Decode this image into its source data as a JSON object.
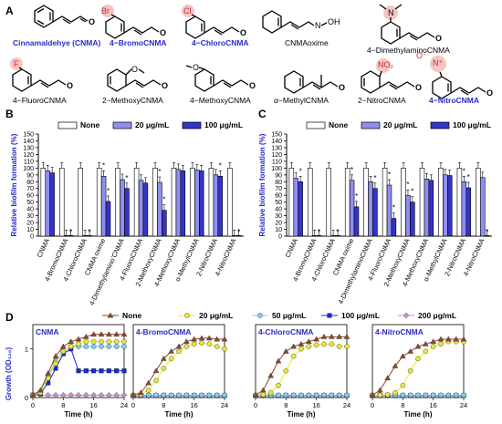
{
  "panel_labels": {
    "A": "A",
    "B": "B",
    "C": "C",
    "D": "D"
  },
  "compounds_row1": [
    "Cinnamaldehye (CNMA)",
    "4−BromoCNMA",
    "4−ChloroCNMA",
    "CNMAoxime",
    "4−DimethylaminoCNMA"
  ],
  "compounds_row2": [
    "4−FluoroCNMA",
    "2−MethoxyCNMA",
    "4−MethoxyCNMA",
    "α−MethylCNMA",
    "2−NitroCNMA",
    "4−NitroCNMA"
  ],
  "atoms": {
    "Br": "Br",
    "Cl": "Cl",
    "F": "F",
    "O": "O",
    "N": "N",
    "OH": "OH",
    "NO2": "NO₂",
    "N_plus": "N⁺",
    "O_minus": "O⁻"
  },
  "highlight_colors": {
    "blue": "#2b2bc8",
    "red_halo": "#f6c4c4",
    "black": "#000000"
  },
  "chart_data": [
    {
      "type": "bar",
      "panel": "B",
      "ylabel": "Relative biofilm formation (%)",
      "ylim": [
        0,
        150
      ],
      "yticks": [
        0,
        10,
        20,
        30,
        40,
        50,
        60,
        70,
        80,
        90,
        100,
        110,
        120,
        130,
        140,
        150
      ],
      "categories": [
        "CNMA",
        "4-BromoCNMA",
        "4-ChloroCNMA",
        "CNMA oxime",
        "4-Dimethylamino’CNMA",
        "4-FluoroCNMA",
        "2-MethoxyCNMA",
        "4-MethoxyCNMA",
        "α-MethylCNMA",
        "2-NitroCNMA",
        "4-NitroCNMA"
      ],
      "legend": [
        "None",
        "20 μg/mL",
        "100 μg/mL"
      ],
      "legend_placement": "top",
      "series": [
        {
          "name": "None",
          "color": "#ffffff",
          "values": [
            100,
            100,
            100,
            100,
            100,
            100,
            100,
            100,
            100,
            100,
            100
          ]
        },
        {
          "name": "20 μg/mL",
          "color": "#8f8ff0",
          "values": [
            96,
            1,
            1,
            88,
            83,
            82,
            79,
            98,
            97,
            90,
            1
          ]
        },
        {
          "name": "100 μg/mL",
          "color": "#3434c8",
          "values": [
            93,
            1,
            1,
            51,
            70,
            78,
            38,
            96,
            96,
            88,
            1
          ]
        }
      ],
      "asterisks": [
        [
          1,
          1
        ],
        [
          2,
          1
        ],
        [
          3,
          0
        ],
        [
          3,
          1
        ],
        [
          4,
          1
        ],
        [
          6,
          0
        ],
        [
          6,
          1
        ],
        [
          9,
          1
        ],
        [
          10,
          1
        ]
      ]
    },
    {
      "type": "bar",
      "panel": "C",
      "ylabel": "Relative biofilm formation (%)",
      "ylim": [
        0,
        150
      ],
      "yticks": [
        0,
        10,
        20,
        30,
        40,
        50,
        60,
        70,
        80,
        90,
        100,
        110,
        120,
        130,
        140,
        150
      ],
      "categories": [
        "CNMA",
        "4-BromoCNMA",
        "4-ChloroCNMA",
        "CNMA oxime",
        "4-DimethylaminoCNMA",
        "4-FluoroCNMA",
        "2-MethoxyCNMA",
        "4-MethoxyCNMA",
        "α-MethylCNMA",
        "2-NitroCNMA",
        "4-NitroCNMA"
      ],
      "legend": [
        "None",
        "20 μg/mL",
        "100 μg/mL"
      ],
      "legend_placement": "top",
      "series": [
        {
          "name": "None",
          "color": "#ffffff",
          "values": [
            100,
            100,
            100,
            100,
            100,
            100,
            100,
            100,
            100,
            100,
            100
          ]
        },
        {
          "name": "20 μg/mL",
          "color": "#8f8ff0",
          "values": [
            85,
            1,
            1,
            82,
            80,
            75,
            60,
            84,
            90,
            80,
            86
          ]
        },
        {
          "name": "100 μg/mL",
          "color": "#3434c8",
          "values": [
            80,
            1,
            1,
            43,
            70,
            26,
            50,
            82,
            89,
            71,
            1
          ]
        }
      ],
      "asterisks": [
        [
          0,
          1
        ],
        [
          1,
          1
        ],
        [
          2,
          1
        ],
        [
          3,
          0
        ],
        [
          3,
          1
        ],
        [
          4,
          1
        ],
        [
          5,
          0
        ],
        [
          5,
          1
        ],
        [
          6,
          0
        ],
        [
          6,
          1
        ],
        [
          9,
          0
        ],
        [
          9,
          1
        ],
        [
          10,
          1
        ]
      ]
    },
    {
      "type": "line",
      "panel": "D",
      "ylabel": "Growth (OD₆₂₀)",
      "xlabel": "Time (h)",
      "xticks": [
        0,
        8,
        16,
        24
      ],
      "xlim": [
        0,
        24
      ],
      "ylim": [
        0,
        1.5
      ],
      "yticks": [
        0,
        1
      ],
      "legend": [
        "None",
        "20 μg/mL",
        "50 μg/mL",
        "100 μg/mL",
        "200 μg/mL"
      ],
      "legend_placement": "top",
      "colors": {
        "None": "#8b4a2a",
        "20": "#e8e830",
        "50": "#7fd0f0",
        "100": "#1a2ad0",
        "200": "#d08ad8"
      },
      "subplots": [
        {
          "title": "CNMA",
          "x": [
            0,
            2,
            4,
            6,
            8,
            10,
            12,
            14,
            16,
            18,
            20,
            22,
            24
          ],
          "None": [
            0.05,
            0.15,
            0.5,
            0.85,
            1.05,
            1.15,
            1.2,
            1.25,
            1.3,
            1.3,
            1.3,
            1.3,
            1.3
          ],
          "20": [
            0.05,
            0.1,
            0.4,
            0.7,
            0.95,
            1.05,
            1.1,
            1.15,
            1.15,
            1.15,
            1.15,
            1.15,
            1.15
          ],
          "50": [
            0.05,
            0.12,
            0.45,
            0.75,
            0.95,
            1.05,
            1.05,
            1.05,
            1.05,
            1.05,
            1.05,
            1.05,
            1.05
          ],
          "100": [
            0.05,
            0.08,
            0.3,
            0.6,
            0.9,
            1.0,
            0.55,
            0.55,
            0.55,
            0.55,
            0.55,
            0.55,
            0.55
          ],
          "200": [
            0.05,
            0.05,
            0.05,
            0.05,
            0.05,
            0.05,
            0.05,
            0.05,
            0.05,
            0.05,
            0.05,
            0.05,
            0.05
          ]
        },
        {
          "title": "4-BromoCNMA",
          "x": [
            0,
            2,
            4,
            6,
            8,
            10,
            12,
            14,
            16,
            18,
            20,
            22,
            24
          ],
          "None": [
            0.05,
            0.1,
            0.3,
            0.55,
            0.8,
            0.95,
            1.05,
            1.15,
            1.2,
            1.22,
            1.22,
            1.2,
            1.2
          ],
          "20": [
            0.05,
            0.06,
            0.15,
            0.35,
            0.6,
            0.8,
            0.95,
            1.05,
            1.1,
            1.12,
            1.1,
            1.05,
            1.0
          ],
          "50": [
            0.05,
            0.05,
            0.05,
            0.05,
            0.05,
            0.05,
            0.05,
            0.05,
            0.05,
            0.05,
            0.05,
            0.05,
            0.05
          ],
          "100": [
            0.04,
            0.04,
            0.04,
            0.04,
            0.04,
            0.04,
            0.04,
            0.04,
            0.04,
            0.04,
            0.04,
            0.04,
            0.04
          ],
          "200": [
            0.04,
            0.04,
            0.04,
            0.04,
            0.04,
            0.04,
            0.04,
            0.04,
            0.04,
            0.04,
            0.04,
            0.04,
            0.04
          ]
        },
        {
          "title": "4-ChloroCNMA",
          "x": [
            0,
            2,
            4,
            6,
            8,
            10,
            12,
            14,
            16,
            18,
            20,
            22,
            24
          ],
          "None": [
            0.05,
            0.15,
            0.45,
            0.75,
            0.95,
            1.05,
            1.1,
            1.15,
            1.2,
            1.25,
            1.25,
            1.25,
            1.25
          ],
          "20": [
            0.05,
            0.06,
            0.1,
            0.25,
            0.55,
            0.85,
            1.0,
            1.05,
            1.08,
            1.1,
            1.1,
            1.05,
            1.05
          ],
          "50": [
            0.05,
            0.05,
            0.05,
            0.05,
            0.05,
            0.05,
            0.05,
            0.05,
            0.05,
            0.05,
            0.05,
            0.05,
            0.05
          ],
          "100": [
            0.04,
            0.04,
            0.04,
            0.04,
            0.04,
            0.04,
            0.04,
            0.04,
            0.04,
            0.04,
            0.04,
            0.04,
            0.04
          ],
          "200": [
            0.04,
            0.04,
            0.04,
            0.04,
            0.04,
            0.04,
            0.04,
            0.04,
            0.04,
            0.04,
            0.04,
            0.04,
            0.04
          ]
        },
        {
          "title": "4-NitroCNMA",
          "x": [
            0,
            2,
            4,
            6,
            8,
            10,
            12,
            14,
            16,
            18,
            20,
            22,
            24
          ],
          "None": [
            0.05,
            0.15,
            0.4,
            0.65,
            0.85,
            0.95,
            1.05,
            1.1,
            1.15,
            1.2,
            1.2,
            1.2,
            1.2
          ],
          "20": [
            0.05,
            0.05,
            0.06,
            0.1,
            0.25,
            0.55,
            0.8,
            0.95,
            1.05,
            1.1,
            1.15,
            1.15,
            1.15
          ],
          "50": [
            0.05,
            0.05,
            0.05,
            0.05,
            0.05,
            0.05,
            0.05,
            0.05,
            0.05,
            0.05,
            0.05,
            0.05,
            0.05
          ],
          "100": [
            0.04,
            0.04,
            0.04,
            0.04,
            0.04,
            0.04,
            0.04,
            0.04,
            0.04,
            0.04,
            0.04,
            0.04,
            0.04
          ],
          "200": [
            0.04,
            0.04,
            0.04,
            0.04,
            0.04,
            0.04,
            0.04,
            0.04,
            0.04,
            0.04,
            0.04,
            0.04,
            0.04
          ]
        }
      ]
    }
  ]
}
